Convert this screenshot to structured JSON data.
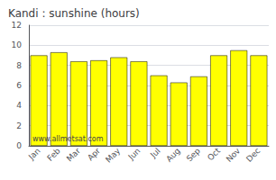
{
  "chart_data": {
    "type": "bar",
    "title": "Kandi : sunshine (hours)",
    "categories": [
      "Jan",
      "Feb",
      "Mar",
      "Apr",
      "May",
      "Jun",
      "Jul",
      "Aug",
      "Sep",
      "Oct",
      "Nov",
      "Dec"
    ],
    "values": [
      9.0,
      9.3,
      8.4,
      8.5,
      8.8,
      8.4,
      7.0,
      6.3,
      6.9,
      9.0,
      9.5,
      9.0
    ],
    "color": "#ffff00",
    "ylim": [
      0,
      12
    ],
    "yticks": [
      0,
      2,
      4,
      6,
      8,
      10,
      12
    ],
    "grid": true,
    "annotations": [
      "www.allmetsat.com"
    ]
  }
}
